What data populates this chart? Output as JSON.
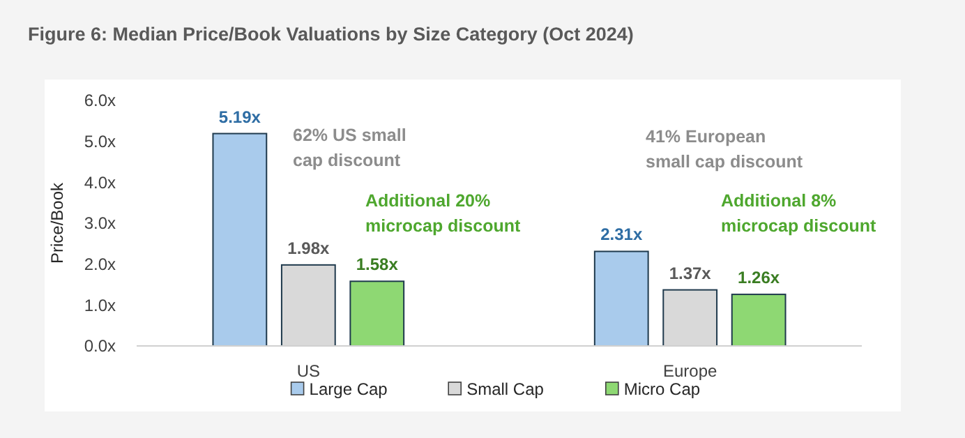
{
  "chart_data": {
    "type": "bar",
    "title": "Figure 6: Median Price/Book Valuations by Size Category (Oct 2024)",
    "ylabel": "Price/Book",
    "categories": [
      "US",
      "Europe"
    ],
    "series": [
      {
        "name": "Large Cap",
        "color": "#a9cbec",
        "values": [
          5.19,
          2.31
        ]
      },
      {
        "name": "Small Cap",
        "color": "#d9d9d9",
        "values": [
          1.98,
          1.37
        ]
      },
      {
        "name": "Micro Cap",
        "color": "#8ed873",
        "values": [
          1.58,
          1.26
        ]
      }
    ],
    "ylim": [
      0,
      6
    ],
    "yticks": [
      {
        "value": 0,
        "label": "0.0x"
      },
      {
        "value": 1,
        "label": "1.0x"
      },
      {
        "value": 2,
        "label": "2.0x"
      },
      {
        "value": 3,
        "label": "3.0x"
      },
      {
        "value": 4,
        "label": "4.0x"
      },
      {
        "value": 5,
        "label": "5.0x"
      },
      {
        "value": 6,
        "label": "6.0x"
      }
    ],
    "value_labels": [
      [
        "5.19x",
        "2.31x"
      ],
      [
        "1.98x",
        "1.37x"
      ],
      [
        "1.58x",
        "1.26x"
      ]
    ],
    "annotations": [
      "62% US small cap discount",
      "41% European small cap discount",
      "Additional 20% microcap discount",
      "Additional 8% microcap discount"
    ],
    "legend": "bottom",
    "grid": false
  }
}
